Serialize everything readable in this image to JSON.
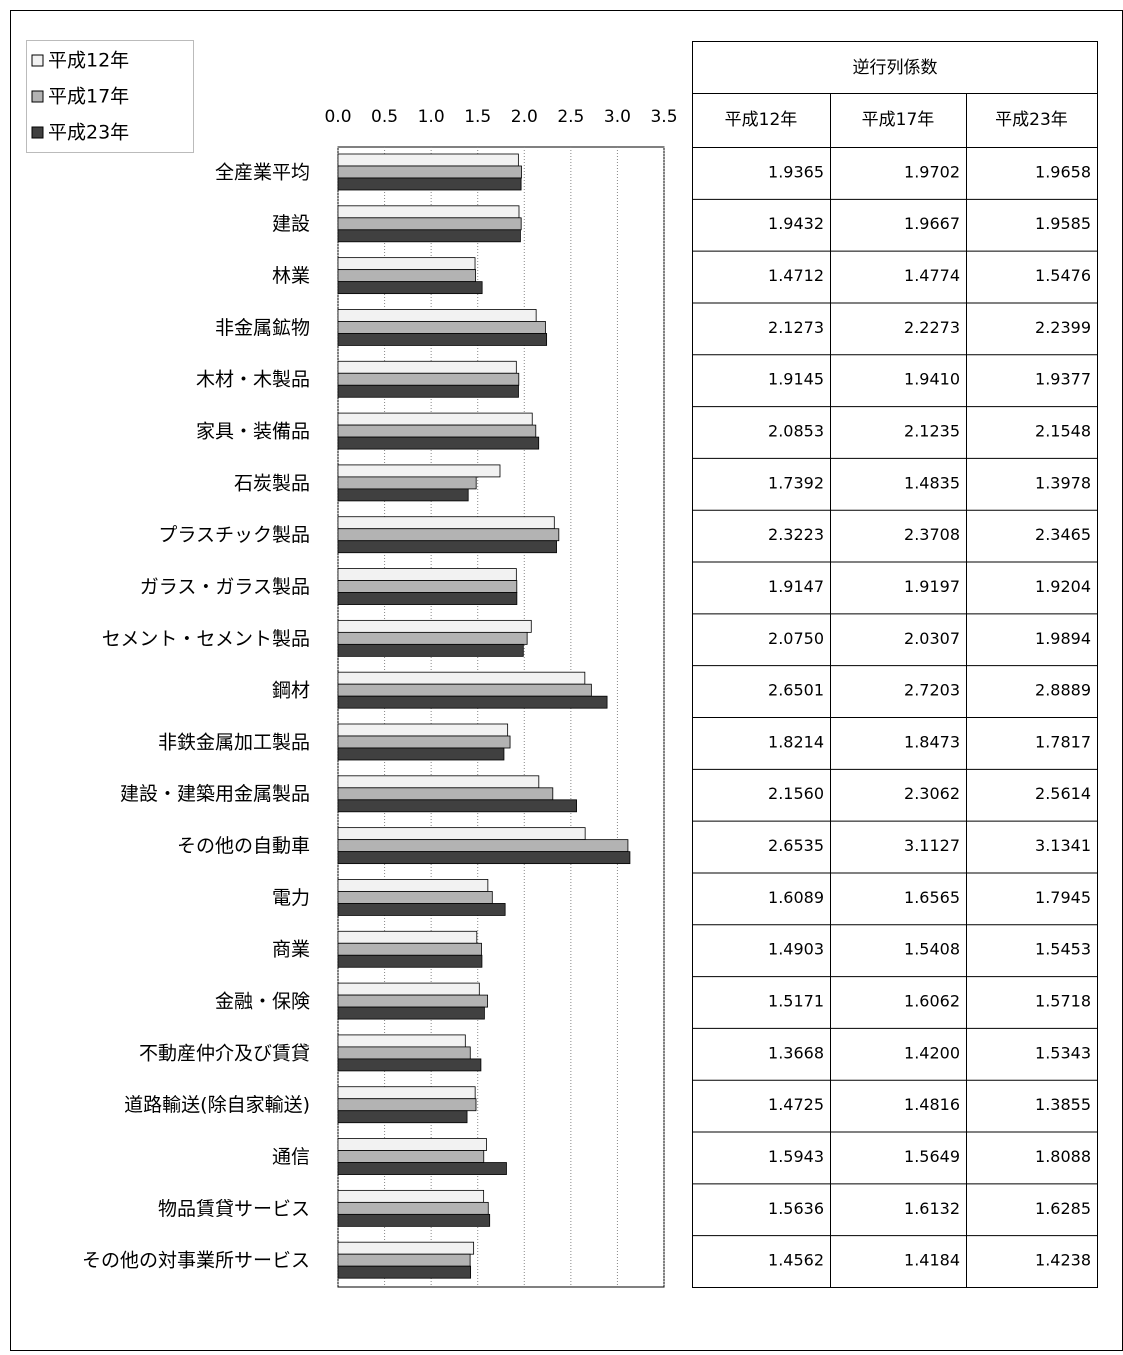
{
  "chart_data": {
    "type": "bar",
    "orientation": "horizontal",
    "categories": [
      "全産業平均",
      "建設",
      "林業",
      "非金属鉱物",
      "木材・木製品",
      "家具・装備品",
      "石炭製品",
      "プラスチック製品",
      "ガラス・ガラス製品",
      "セメント・セメント製品",
      "鋼材",
      "非鉄金属加工製品",
      "建設・建築用金属製品",
      "その他の自動車",
      "電力",
      "商業",
      "金融・保険",
      "不動産仲介及び賃貸",
      "道路輸送(除自家輸送)",
      "通信",
      "物品賃貸サービス",
      "その他の対事業所サービス"
    ],
    "series": [
      {
        "name": "平成12年",
        "color": "#f2f2f2",
        "values": [
          1.9365,
          1.9432,
          1.4712,
          2.1273,
          1.9145,
          2.0853,
          1.7392,
          2.3223,
          1.9147,
          2.075,
          2.6501,
          1.8214,
          2.156,
          2.6535,
          1.6089,
          1.4903,
          1.5171,
          1.3668,
          1.4725,
          1.5943,
          1.5636,
          1.4562
        ],
        "value_labels": [
          "1.9365",
          "1.9432",
          "1.4712",
          "2.1273",
          "1.9145",
          "2.0853",
          "1.7392",
          "2.3223",
          "1.9147",
          "2.0750",
          "2.6501",
          "1.8214",
          "2.1560",
          "2.6535",
          "1.6089",
          "1.4903",
          "1.5171",
          "1.3668",
          "1.4725",
          "1.5943",
          "1.5636",
          "1.4562"
        ]
      },
      {
        "name": "平成17年",
        "color": "#b3b3b3",
        "values": [
          1.9702,
          1.9667,
          1.4774,
          2.2273,
          1.941,
          2.1235,
          1.4835,
          2.3708,
          1.9197,
          2.0307,
          2.7203,
          1.8473,
          2.3062,
          3.1127,
          1.6565,
          1.5408,
          1.6062,
          1.42,
          1.4816,
          1.5649,
          1.6132,
          1.4184
        ],
        "value_labels": [
          "1.9702",
          "1.9667",
          "1.4774",
          "2.2273",
          "1.9410",
          "2.1235",
          "1.4835",
          "2.3708",
          "1.9197",
          "2.0307",
          "2.7203",
          "1.8473",
          "2.3062",
          "3.1127",
          "1.6565",
          "1.5408",
          "1.6062",
          "1.4200",
          "1.4816",
          "1.5649",
          "1.6132",
          "1.4184"
        ]
      },
      {
        "name": "平成23年",
        "color": "#404040",
        "values": [
          1.9658,
          1.9585,
          1.5476,
          2.2399,
          1.9377,
          2.1548,
          1.3978,
          2.3465,
          1.9204,
          1.9894,
          2.8889,
          1.7817,
          2.5614,
          3.1341,
          1.7945,
          1.5453,
          1.5718,
          1.5343,
          1.3855,
          1.8088,
          1.6285,
          1.4238
        ],
        "value_labels": [
          "1.9658",
          "1.9585",
          "1.5476",
          "2.2399",
          "1.9377",
          "2.1548",
          "1.3978",
          "2.3465",
          "1.9204",
          "1.9894",
          "2.8889",
          "1.7817",
          "2.5614",
          "3.1341",
          "1.7945",
          "1.5453",
          "1.5718",
          "1.5343",
          "1.3855",
          "1.8088",
          "1.6285",
          "1.4238"
        ]
      }
    ],
    "xlim": [
      0,
      3.5
    ],
    "xticks": [
      {
        "value": 0,
        "label": "0.0"
      },
      0.5,
      {
        "value": 1,
        "label": "1.0"
      },
      1.5,
      {
        "value": 2,
        "label": "2.0"
      },
      2.5,
      {
        "value": 3,
        "label": "3.0"
      },
      3.5
    ],
    "grid": true,
    "legend": "upper left",
    "table_title": "逆行列係数"
  }
}
